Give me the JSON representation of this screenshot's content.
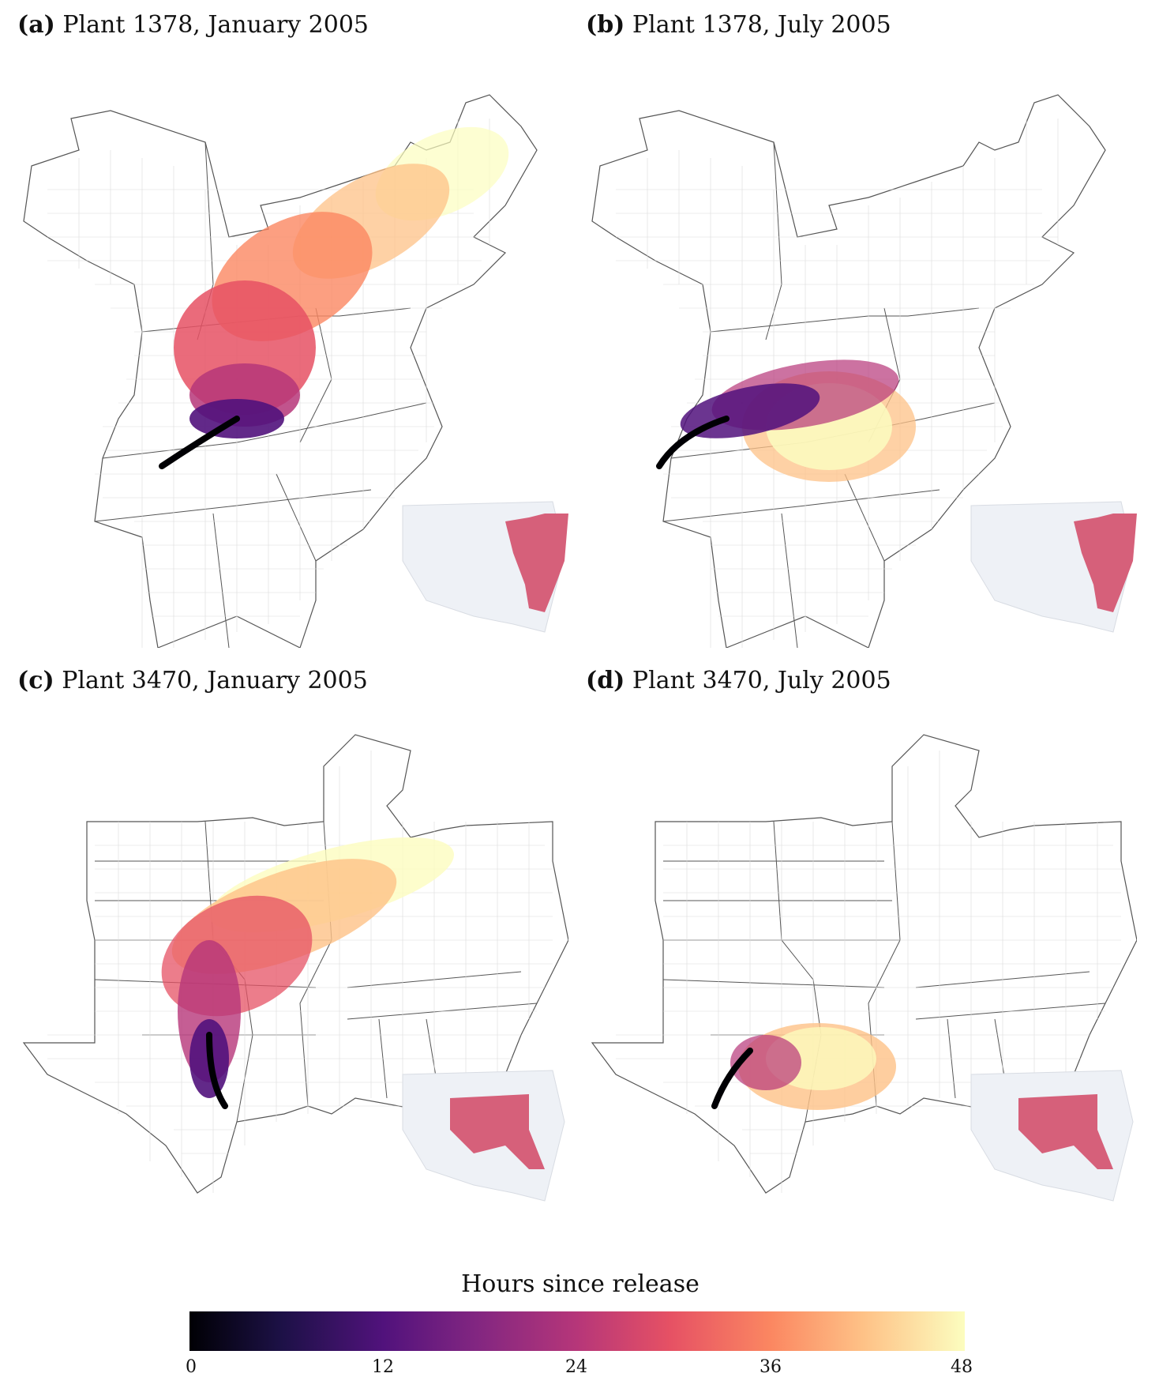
{
  "panels": [
    {
      "letter": "(a)",
      "title": "Plant 1378, January 2005"
    },
    {
      "letter": "(b)",
      "title": "Plant 1378, July 2005"
    },
    {
      "letter": "(c)",
      "title": "Plant 3470, January 2005"
    },
    {
      "letter": "(d)",
      "title": "Plant 3470, July 2005"
    }
  ],
  "legend": {
    "title": "Hours since release",
    "ticks": [
      "0",
      "12",
      "24",
      "36",
      "48"
    ],
    "colormap": [
      "#000004",
      "#1d1147",
      "#51127c",
      "#822681",
      "#b63679",
      "#e65164",
      "#fb8761",
      "#fec287",
      "#fcfdbf"
    ]
  },
  "colors": {
    "state_border": "#555555",
    "county_border": "#cfcfcf",
    "inset_highlight": "#d6607a",
    "inset_base": "#eef1f6"
  }
}
